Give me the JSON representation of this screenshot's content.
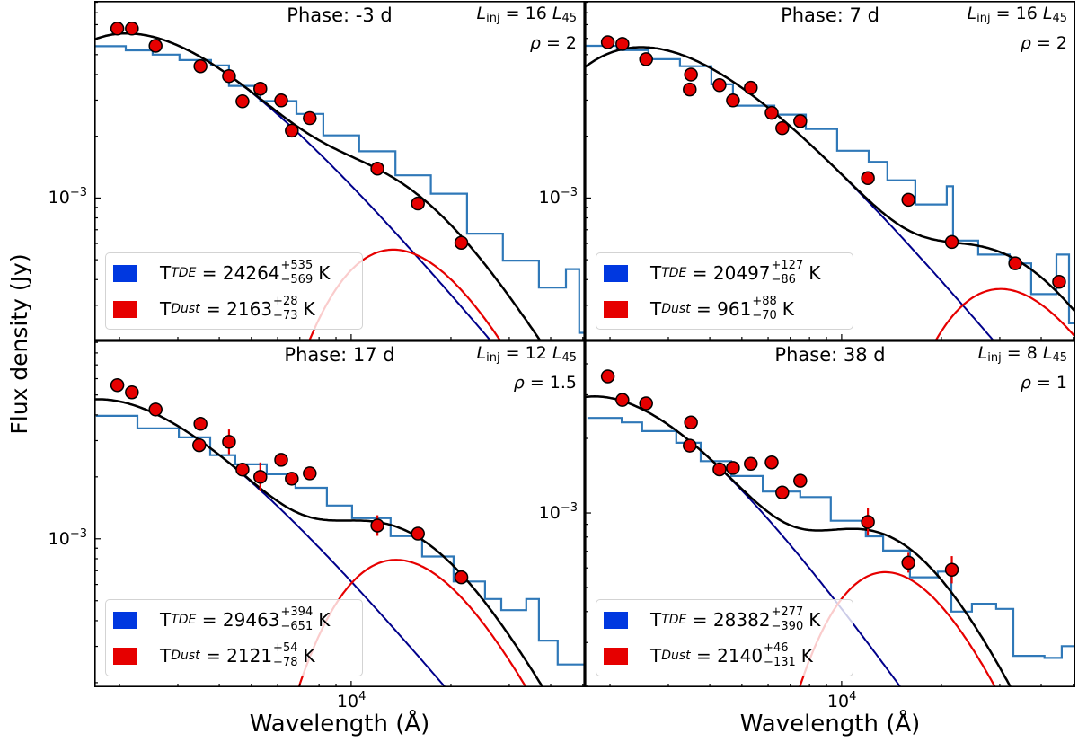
{
  "figure": {
    "xlabel": "Wavelength (Å)",
    "ylabel": "Flux density (Jy)",
    "equals": "=",
    "unit_K": "K",
    "colors": {
      "spectrum": "#2f78b8",
      "tde": "#00008b",
      "dust": "#e60000",
      "total": "#000000",
      "points": "#e60000",
      "legend_tde": "#0038e0",
      "legend_dust": "#e60000"
    }
  },
  "chart_data": [
    {
      "type": "scatter",
      "panel": "top-left",
      "phase": "Phase: -3 d",
      "linj": {
        "symbol": "L",
        "sub": "inj",
        "value": "16",
        "unit_symbol": "L",
        "unit_sub": "45"
      },
      "rho": {
        "symbol": "ρ",
        "value": "2"
      },
      "xscale": "log",
      "yscale": "log",
      "xlim": [
        1679,
        50700
      ],
      "ylim": [
        0.000202,
        0.00914
      ],
      "y_tick_label": {
        "base": "10",
        "exp": "−3",
        "value": 0.001
      },
      "legend": [
        {
          "symbol": "T",
          "sub": "TDE",
          "value": "24264",
          "plus": "+535",
          "minus": "−569",
          "unit": "K"
        },
        {
          "symbol": "T",
          "sub": "Dust",
          "value": "2163",
          "plus": "+28",
          "minus": "−73",
          "unit": "K"
        }
      ],
      "models": {
        "tde": {
          "temperature_K": 24264,
          "flux_at_10000A": 0.00115
        },
        "dust": {
          "temperature_K": 2163,
          "peak_flux": 0.00056
        }
      },
      "photometry": [
        {
          "x": 1970,
          "y": 0.0067
        },
        {
          "x": 2180,
          "y": 0.0067
        },
        {
          "x": 2570,
          "y": 0.00552
        },
        {
          "x": 3510,
          "y": 0.00439
        },
        {
          "x": 4280,
          "y": 0.00393
        },
        {
          "x": 4700,
          "y": 0.00296
        },
        {
          "x": 5320,
          "y": 0.00341
        },
        {
          "x": 6150,
          "y": 0.00299
        },
        {
          "x": 6620,
          "y": 0.00213
        },
        {
          "x": 7500,
          "y": 0.00245
        },
        {
          "x": 12000,
          "y": 0.00139,
          "yerr_dex": 0.025
        },
        {
          "x": 15900,
          "y": 0.00094,
          "yerr_dex": 0.025
        },
        {
          "x": 21500,
          "y": 0.000605,
          "yerr_dex": 0.03
        }
      ],
      "spectrum": {
        "x": [
          1679,
          2089,
          2518,
          3034,
          3776,
          4280,
          5320,
          6840,
          8240,
          10570,
          13600,
          17400,
          22370,
          28700,
          36850,
          44460,
          48780,
          50700
        ],
        "y": [
          0.0055,
          0.00525,
          0.005,
          0.0047,
          0.00443,
          0.00352,
          0.00297,
          0.00257,
          0.00202,
          0.00169,
          0.00129,
          0.00105,
          0.00067,
          0.000495,
          0.000366,
          0.00045,
          0.00022,
          0.00022
        ]
      }
    },
    {
      "type": "scatter",
      "panel": "top-right",
      "phase": "Phase: 7 d",
      "linj": {
        "symbol": "L",
        "sub": "inj",
        "value": "16",
        "unit_symbol": "L",
        "unit_sub": "45"
      },
      "rho": {
        "symbol": "ρ",
        "value": "2"
      },
      "xscale": "log",
      "yscale": "log",
      "xlim": [
        1679,
        50700
      ],
      "ylim": [
        0.000202,
        0.00914
      ],
      "y_tick_label": {
        "base": "10",
        "exp": "−3",
        "value": 0.001
      },
      "legend": [
        {
          "symbol": "T",
          "sub": "TDE",
          "value": "20497",
          "plus": "+127",
          "minus": "−86",
          "unit": "K"
        },
        {
          "symbol": "T",
          "sub": "Dust",
          "value": "961",
          "plus": "+88",
          "minus": "−70",
          "unit": "K"
        }
      ],
      "models": {
        "tde": {
          "temperature_K": 20497,
          "flux_at_10000A": 0.0013
        },
        "dust": {
          "temperature_K": 961,
          "peak_flux": 0.00036
        }
      },
      "photometry": [
        {
          "x": 1970,
          "y": 0.00575
        },
        {
          "x": 2180,
          "y": 0.00564
        },
        {
          "x": 2570,
          "y": 0.00475
        },
        {
          "x": 3510,
          "y": 0.004
        },
        {
          "x": 3480,
          "y": 0.00338
        },
        {
          "x": 4280,
          "y": 0.00355
        },
        {
          "x": 4700,
          "y": 0.00299
        },
        {
          "x": 5320,
          "y": 0.00345
        },
        {
          "x": 6150,
          "y": 0.0026
        },
        {
          "x": 6620,
          "y": 0.00219
        },
        {
          "x": 7500,
          "y": 0.00237
        },
        {
          "x": 12000,
          "y": 0.00125,
          "yerr_dex": 0.02
        },
        {
          "x": 15900,
          "y": 0.00098,
          "yerr_dex": 0.02
        },
        {
          "x": 21500,
          "y": 0.00061
        },
        {
          "x": 33400,
          "y": 0.00048
        },
        {
          "x": 45300,
          "y": 0.00039
        }
      ],
      "spectrum": {
        "x": [
          1690,
          2100,
          2612,
          3251,
          4046,
          4700,
          6266,
          7796,
          9690,
          12070,
          13740,
          16680,
          20750,
          21680,
          25820,
          32130,
          37320,
          44460,
          48530,
          50700
        ],
        "y": [
          0.00552,
          0.00526,
          0.00475,
          0.00439,
          0.00358,
          0.00282,
          0.00255,
          0.00217,
          0.0017,
          0.0015,
          0.00122,
          0.00093,
          0.00114,
          0.00062,
          0.00053,
          0.00048,
          0.00034,
          0.00053,
          0.000245,
          0.000245
        ]
      }
    },
    {
      "type": "scatter",
      "panel": "bottom-left",
      "phase": "Phase: 17 d",
      "linj": {
        "symbol": "L",
        "sub": "inj",
        "value": "12",
        "unit_symbol": "L",
        "unit_sub": "45"
      },
      "rho": {
        "symbol": "ρ",
        "value": "1.5"
      },
      "xscale": "log",
      "yscale": "log",
      "xlim": [
        1679,
        50700
      ],
      "ylim": [
        0.00019,
        0.0092
      ],
      "y_tick_label": {
        "base": "10",
        "exp": "−3",
        "value": 0.001
      },
      "x_tick_label": {
        "base": "10",
        "exp": "4",
        "value": 10000
      },
      "legend": [
        {
          "symbol": "T",
          "sub": "TDE",
          "value": "29463",
          "plus": "+394",
          "minus": "−651",
          "unit": "K"
        },
        {
          "symbol": "T",
          "sub": "Dust",
          "value": "2121",
          "plus": "+54",
          "minus": "−78",
          "unit": "K"
        }
      ],
      "models": {
        "tde": {
          "temperature_K": 29463,
          "flux_at_10000A": 0.00062
        },
        "dust": {
          "temperature_K": 2121,
          "peak_flux": 0.00079
        }
      },
      "photometry": [
        {
          "x": 1970,
          "y": 0.00558
        },
        {
          "x": 2180,
          "y": 0.00515
        },
        {
          "x": 2570,
          "y": 0.00425
        },
        {
          "x": 3510,
          "y": 0.00362
        },
        {
          "x": 3480,
          "y": 0.00285
        },
        {
          "x": 4280,
          "y": 0.00296,
          "yerr_dex": 0.06
        },
        {
          "x": 4700,
          "y": 0.00217
        },
        {
          "x": 5320,
          "y": 0.002,
          "yerr_dex": 0.07
        },
        {
          "x": 6150,
          "y": 0.00242
        },
        {
          "x": 6620,
          "y": 0.00196
        },
        {
          "x": 7500,
          "y": 0.00208
        },
        {
          "x": 12000,
          "y": 0.00116,
          "yerr_dex": 0.05
        },
        {
          "x": 15900,
          "y": 0.00106
        },
        {
          "x": 21500,
          "y": 0.00065
        }
      ],
      "spectrum": {
        "x": [
          1698,
          2265,
          3020,
          3755,
          4470,
          5560,
          6790,
          8450,
          10060,
          13150,
          16370,
          20370,
          25350,
          28380,
          33760,
          36850,
          41980,
          50700
        ],
        "y": [
          0.00396,
          0.00344,
          0.00311,
          0.00255,
          0.0023,
          0.00206,
          0.00177,
          0.00145,
          0.00126,
          0.00103,
          0.00082,
          0.00062,
          0.00051,
          0.00045,
          0.00051,
          0.00032,
          0.000245,
          0.00026
        ]
      }
    },
    {
      "type": "scatter",
      "panel": "bottom-right",
      "phase": "Phase: 38 d",
      "linj": {
        "symbol": "L",
        "sub": "inj",
        "value": "8",
        "unit_symbol": "L",
        "unit_sub": "45"
      },
      "rho": {
        "symbol": "ρ",
        "value": "1"
      },
      "xscale": "log",
      "yscale": "log",
      "xlim": [
        1679,
        50700
      ],
      "ylim": [
        0.000198,
        0.00497
      ],
      "y_tick_label": {
        "base": "10",
        "exp": "−3",
        "value": 0.001
      },
      "x_tick_label": {
        "base": "10",
        "exp": "4",
        "value": 10000
      },
      "legend": [
        {
          "symbol": "T",
          "sub": "TDE",
          "value": "28382",
          "plus": "+277",
          "minus": "−390",
          "unit": "K"
        },
        {
          "symbol": "T",
          "sub": "Dust",
          "value": "2140",
          "plus": "+46",
          "minus": "−131",
          "unit": "K"
        }
      ],
      "models": {
        "tde": {
          "temperature_K": 28382,
          "flux_at_10000A": 0.00041
        },
        "dust": {
          "temperature_K": 2140,
          "peak_flux": 0.000577
        }
      },
      "photometry": [
        {
          "x": 1970,
          "y": 0.00356
        },
        {
          "x": 2180,
          "y": 0.00286
        },
        {
          "x": 2570,
          "y": 0.00277
        },
        {
          "x": 3510,
          "y": 0.00232
        },
        {
          "x": 3480,
          "y": 0.00187
        },
        {
          "x": 4280,
          "y": 0.0015
        },
        {
          "x": 4700,
          "y": 0.00152
        },
        {
          "x": 5320,
          "y": 0.00158
        },
        {
          "x": 6150,
          "y": 0.0016
        },
        {
          "x": 6620,
          "y": 0.00121
        },
        {
          "x": 7500,
          "y": 0.00135
        },
        {
          "x": 12000,
          "y": 0.00092,
          "yerr_dex": 0.055
        },
        {
          "x": 15900,
          "y": 0.00063,
          "yerr_dex": 0.04
        },
        {
          "x": 21500,
          "y": 0.00059,
          "yerr_dex": 0.055
        }
      ],
      "spectrum": {
        "x": [
          1710,
          2170,
          2500,
          3170,
          3755,
          4645,
          5780,
          7500,
          9270,
          11830,
          13340,
          16070,
          19500,
          21430,
          24720,
          29250,
          32960,
          40930,
          46130,
          50700
        ],
        "y": [
          0.00242,
          0.00232,
          0.00214,
          0.00192,
          0.00162,
          0.00141,
          0.00122,
          0.00116,
          0.00093,
          0.000805,
          0.000705,
          0.00055,
          0.00058,
          0.0004,
          0.00043,
          0.00041,
          0.000265,
          0.00026,
          0.00029,
          0.00021
        ]
      }
    }
  ]
}
